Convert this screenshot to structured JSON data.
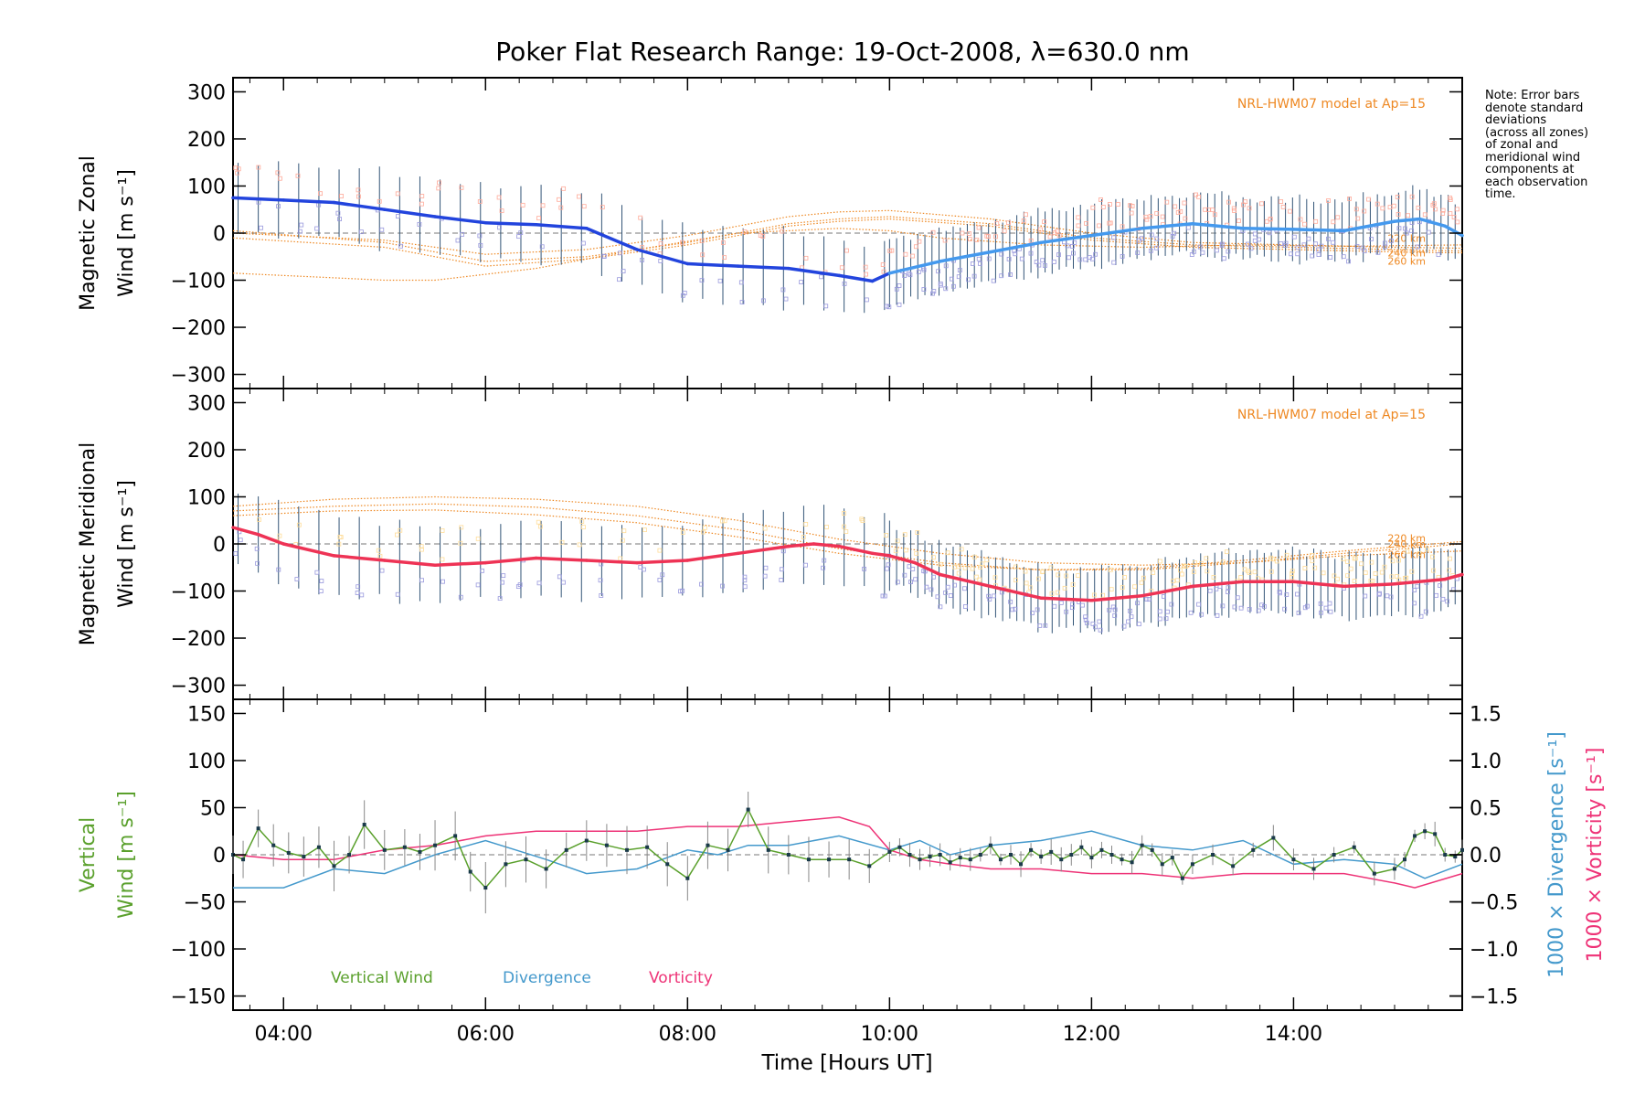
{
  "chart_data": [
    {
      "type": "line",
      "panel": "zonal",
      "title": "Poker Flat Research Range: 19-Oct-2008, λ=630.0 nm",
      "ylabel_line1": "Magnetic Zonal",
      "ylabel_line2": "Wind [m s⁻¹]",
      "ylim": [
        -330,
        330
      ],
      "yticks": [
        "300",
        "200",
        "100",
        "0",
        "−100",
        "−200",
        "−300"
      ],
      "ytick_values": [
        300,
        200,
        100,
        0,
        -100,
        -200,
        -300
      ],
      "model_label": "NRL-HWM07 model at Ap=15",
      "model_altitude_labels": [
        "220 km",
        "240 km",
        "260 km"
      ],
      "colors": {
        "mean": "#2244dd",
        "mean_late": "#4499ee",
        "model": "#ee8822",
        "scatter": "#9999dd",
        "errorbar": "#335577"
      },
      "series": [
        {
          "x": [
            3.5,
            4.0,
            4.5,
            5.0,
            5.5,
            6.0,
            6.5,
            7.0,
            7.5,
            8.0,
            8.5,
            9.0,
            9.5,
            9.83,
            10.0,
            10.5,
            11.0,
            11.5,
            12.0,
            12.5,
            13.0,
            13.5,
            14.0,
            14.5,
            15.0,
            15.25,
            15.5,
            15.67
          ],
          "y": [
            75,
            70,
            65,
            50,
            35,
            22,
            18,
            10,
            -35,
            -65,
            -70,
            -75,
            -90,
            -102,
            -85,
            -60,
            -40,
            -20,
            -5,
            10,
            20,
            10,
            8,
            5,
            25,
            30,
            15,
            -5
          ]
        }
      ],
      "model_curves": [
        {
          "x": [
            3.5,
            4.5,
            5.0,
            5.5,
            6.5,
            7.5,
            8.5,
            9.5,
            10.0,
            10.5,
            11.5,
            12.5,
            13.5,
            14.5,
            15.67
          ],
          "y": [
            -85,
            -95,
            -100,
            -100,
            -75,
            -35,
            0,
            10,
            5,
            -10,
            -25,
            -30,
            -25,
            -28,
            -25
          ]
        },
        {
          "x": [
            3.5,
            5.0,
            6.0,
            7.0,
            8.0,
            9.0,
            9.5,
            10.0,
            11.0,
            12.0,
            13.0,
            14.0,
            15.0,
            15.67
          ],
          "y": [
            5,
            -20,
            -60,
            -50,
            -20,
            20,
            30,
            35,
            20,
            -10,
            -25,
            -30,
            -35,
            -38
          ]
        },
        {
          "x": [
            3.5,
            5.0,
            6.0,
            7.0,
            8.0,
            9.0,
            9.5,
            10.0,
            11.0,
            12.0,
            13.0,
            14.0,
            15.0,
            15.67
          ],
          "y": [
            -10,
            -30,
            -70,
            -55,
            -25,
            15,
            25,
            30,
            15,
            -15,
            -30,
            -35,
            -40,
            -42
          ]
        },
        {
          "x": [
            3.5,
            5.0,
            6.0,
            7.0,
            8.0,
            9.0,
            9.5,
            10.0,
            11.0,
            12.0,
            13.0,
            14.0,
            15.0,
            15.67
          ],
          "y": [
            0,
            -15,
            -45,
            -35,
            -5,
            35,
            45,
            48,
            30,
            0,
            -20,
            -25,
            -30,
            -32
          ]
        }
      ]
    },
    {
      "type": "line",
      "panel": "meridional",
      "ylabel_line1": "Magnetic Meridional",
      "ylabel_line2": "Wind [m s⁻¹]",
      "ylim": [
        -330,
        330
      ],
      "yticks": [
        "300",
        "200",
        "100",
        "0",
        "−100",
        "−200",
        "−300"
      ],
      "ytick_values": [
        300,
        200,
        100,
        0,
        -100,
        -200,
        -300
      ],
      "model_label": "NRL-HWM07 model at Ap=15",
      "model_altitude_labels": [
        "220 km",
        "240 km",
        "260 km"
      ],
      "colors": {
        "mean": "#ee3355",
        "model": "#ee8822",
        "scatter_low": "#9999dd",
        "scatter_high": "#ffdd99",
        "errorbar": "#335577"
      },
      "series": [
        {
          "x": [
            3.5,
            3.75,
            4.0,
            4.5,
            5.0,
            5.5,
            6.0,
            6.5,
            7.0,
            7.5,
            8.0,
            8.5,
            9.0,
            9.25,
            9.5,
            9.83,
            10.0,
            10.25,
            10.5,
            11.0,
            11.5,
            12.0,
            12.5,
            13.0,
            13.5,
            14.0,
            14.5,
            15.0,
            15.5,
            15.67
          ],
          "y": [
            35,
            20,
            0,
            -25,
            -35,
            -45,
            -40,
            -30,
            -35,
            -40,
            -35,
            -20,
            -5,
            0,
            -5,
            -20,
            -25,
            -40,
            -65,
            -90,
            -115,
            -120,
            -110,
            -90,
            -80,
            -80,
            -90,
            -85,
            -75,
            -65
          ]
        }
      ],
      "model_curves": [
        {
          "x": [
            3.5,
            4.5,
            5.5,
            6.5,
            7.5,
            8.5,
            9.5,
            10.5,
            11.5,
            12.5,
            13.5,
            14.5,
            15.67
          ],
          "y": [
            80,
            95,
            100,
            95,
            80,
            50,
            10,
            -20,
            -40,
            -45,
            -40,
            -25,
            -15
          ]
        },
        {
          "x": [
            3.5,
            4.5,
            5.5,
            6.5,
            7.5,
            8.5,
            9.5,
            10.5,
            11.5,
            12.5,
            13.5,
            14.5,
            15.67
          ],
          "y": [
            70,
            80,
            85,
            78,
            60,
            30,
            -10,
            -40,
            -55,
            -55,
            -40,
            -20,
            0
          ]
        },
        {
          "x": [
            3.5,
            4.5,
            5.5,
            6.5,
            7.5,
            8.5,
            9.5,
            10.5,
            11.5,
            12.5,
            13.5,
            14.5,
            15.67
          ],
          "y": [
            60,
            70,
            72,
            62,
            45,
            15,
            -20,
            -45,
            -55,
            -52,
            -35,
            -15,
            5
          ]
        }
      ]
    },
    {
      "type": "line",
      "panel": "vertical",
      "ylabel_line1": "Vertical",
      "ylabel_line2": "Wind [m s⁻¹]",
      "ylim": [
        -165,
        165
      ],
      "yticks": [
        "150",
        "100",
        "50",
        "0",
        "−50",
        "−100",
        "−150"
      ],
      "ytick_values": [
        150,
        100,
        50,
        0,
        -50,
        -100,
        -150
      ],
      "y2label_divergence": "1000 × Divergence [s⁻¹]",
      "y2label_vorticity": "1000 × Vorticity [s⁻¹]",
      "y2lim": [
        -1.65,
        1.65
      ],
      "y2ticks": [
        "1.5",
        "1.0",
        "0.5",
        "0.0",
        "−0.5",
        "−1.0",
        "−1.5"
      ],
      "y2tick_values": [
        1.5,
        1.0,
        0.5,
        0.0,
        -0.5,
        -1.0,
        -1.5
      ],
      "xlabel": "Time [Hours UT]",
      "xlim": [
        3.5,
        15.67
      ],
      "xticks": [
        "04:00",
        "06:00",
        "08:00",
        "10:00",
        "12:00",
        "14:00"
      ],
      "xtick_values": [
        4,
        6,
        8,
        10,
        12,
        14
      ],
      "legend": [
        "Vertical Wind",
        "Divergence",
        "Vorticity"
      ],
      "colors": {
        "vertical": "#5aa02c",
        "divergence": "#4499cc",
        "vorticity": "#ee3377"
      },
      "series": [
        {
          "name": "Vertical Wind",
          "x": [
            3.5,
            3.6,
            3.75,
            3.9,
            4.05,
            4.2,
            4.35,
            4.5,
            4.65,
            4.8,
            5.0,
            5.2,
            5.35,
            5.5,
            5.7,
            5.85,
            6.0,
            6.2,
            6.4,
            6.6,
            6.8,
            7.0,
            7.2,
            7.4,
            7.6,
            7.8,
            8.0,
            8.2,
            8.4,
            8.6,
            8.8,
            9.0,
            9.2,
            9.4,
            9.6,
            9.8,
            10.0,
            10.1,
            10.2,
            10.3,
            10.4,
            10.5,
            10.6,
            10.7,
            10.8,
            10.9,
            11.0,
            11.1,
            11.2,
            11.3,
            11.4,
            11.5,
            11.6,
            11.7,
            11.8,
            11.9,
            12.0,
            12.1,
            12.2,
            12.3,
            12.4,
            12.5,
            12.6,
            12.7,
            12.8,
            12.9,
            13.0,
            13.2,
            13.4,
            13.6,
            13.8,
            14.0,
            14.2,
            14.4,
            14.6,
            14.8,
            15.0,
            15.1,
            15.2,
            15.3,
            15.4,
            15.5,
            15.6,
            15.67
          ],
          "y": [
            0,
            -5,
            28,
            10,
            2,
            -2,
            8,
            -12,
            0,
            32,
            5,
            8,
            3,
            10,
            20,
            -18,
            -35,
            -10,
            -5,
            -15,
            5,
            15,
            10,
            5,
            8,
            -10,
            -25,
            10,
            5,
            48,
            5,
            0,
            -5,
            -5,
            -5,
            -12,
            3,
            8,
            0,
            -5,
            -2,
            0,
            -8,
            -3,
            -5,
            0,
            10,
            -5,
            0,
            -10,
            5,
            -2,
            3,
            -5,
            0,
            8,
            -3,
            5,
            0,
            -5,
            -8,
            10,
            5,
            -10,
            -3,
            -25,
            -10,
            0,
            -12,
            5,
            18,
            -5,
            -15,
            0,
            8,
            -20,
            -15,
            -5,
            20,
            25,
            22,
            0,
            -2,
            5
          ]
        },
        {
          "name": "Divergence",
          "x": [
            3.5,
            4.0,
            4.5,
            5.0,
            5.5,
            6.0,
            6.3,
            6.6,
            7.0,
            7.5,
            8.0,
            8.3,
            8.6,
            9.0,
            9.5,
            10.0,
            10.3,
            10.6,
            11.0,
            11.5,
            12.0,
            12.5,
            13.0,
            13.5,
            14.0,
            14.5,
            15.0,
            15.3,
            15.67
          ],
          "y": [
            -0.35,
            -0.35,
            -0.15,
            -0.2,
            0.0,
            0.15,
            0.05,
            -0.05,
            -0.2,
            -0.15,
            0.05,
            0.0,
            0.1,
            0.1,
            0.2,
            0.05,
            0.15,
            0.0,
            0.1,
            0.15,
            0.25,
            0.1,
            0.05,
            0.15,
            -0.1,
            -0.05,
            -0.1,
            -0.25,
            -0.1
          ]
        },
        {
          "name": "Vorticity",
          "x": [
            3.5,
            4.0,
            4.5,
            5.0,
            5.5,
            6.0,
            6.5,
            7.0,
            7.5,
            8.0,
            8.5,
            9.0,
            9.5,
            9.8,
            10.0,
            10.3,
            10.6,
            11.0,
            11.5,
            12.0,
            12.5,
            13.0,
            13.5,
            14.0,
            14.5,
            15.0,
            15.2,
            15.67
          ],
          "y": [
            0.0,
            -0.05,
            -0.05,
            0.05,
            0.1,
            0.2,
            0.25,
            0.25,
            0.25,
            0.3,
            0.3,
            0.35,
            0.4,
            0.3,
            0.05,
            -0.05,
            -0.1,
            -0.15,
            -0.15,
            -0.2,
            -0.2,
            -0.25,
            -0.2,
            -0.2,
            -0.2,
            -0.3,
            -0.35,
            -0.2
          ]
        }
      ]
    }
  ],
  "note": {
    "lines": [
      "Note: Error bars",
      "denote standard",
      "deviations",
      "(across all zones)",
      "of zonal and",
      "meridional wind",
      "components at",
      "each observation",
      "time."
    ]
  }
}
